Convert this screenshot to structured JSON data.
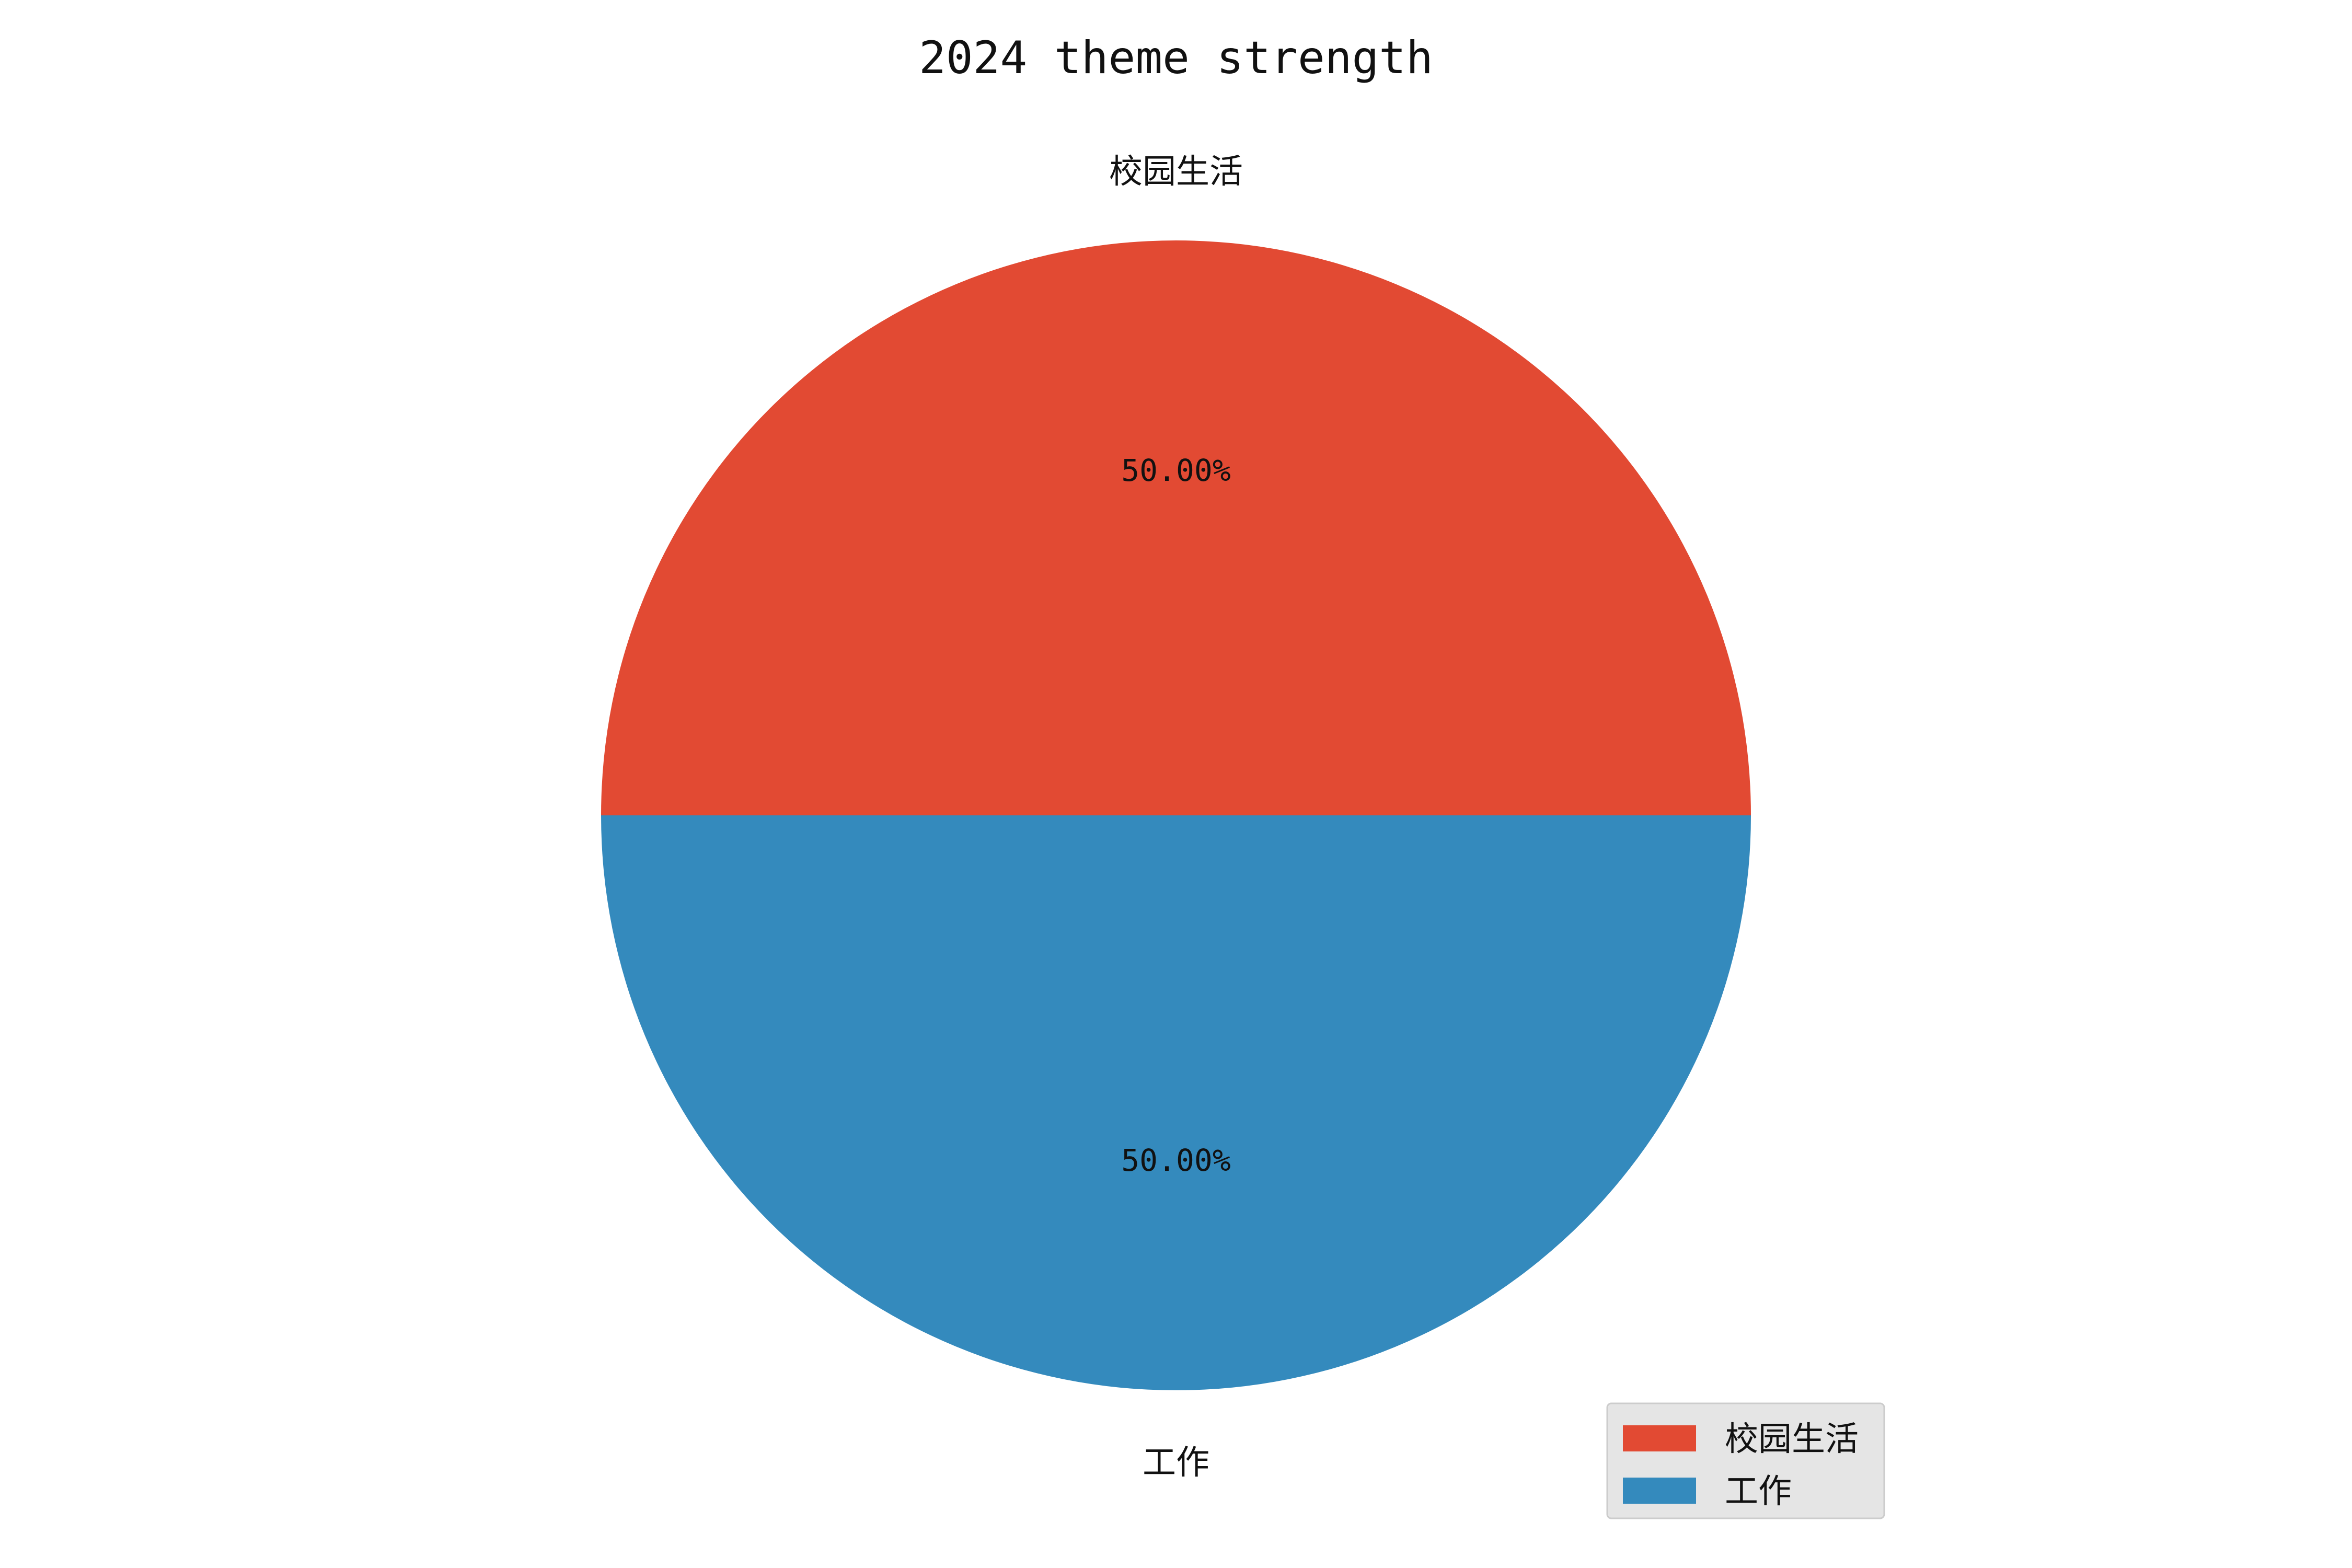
{
  "chart_data": {
    "type": "pie",
    "title": "2024 theme strength",
    "categories": [
      "校园生活",
      "工作"
    ],
    "values": [
      50,
      50
    ],
    "value_labels": [
      "50.00%",
      "50.00%"
    ],
    "colors": [
      "#E24A33",
      "#348ABD"
    ],
    "legend": {
      "entries": [
        "校园生活",
        "工作"
      ],
      "placement": "lower-right"
    }
  }
}
